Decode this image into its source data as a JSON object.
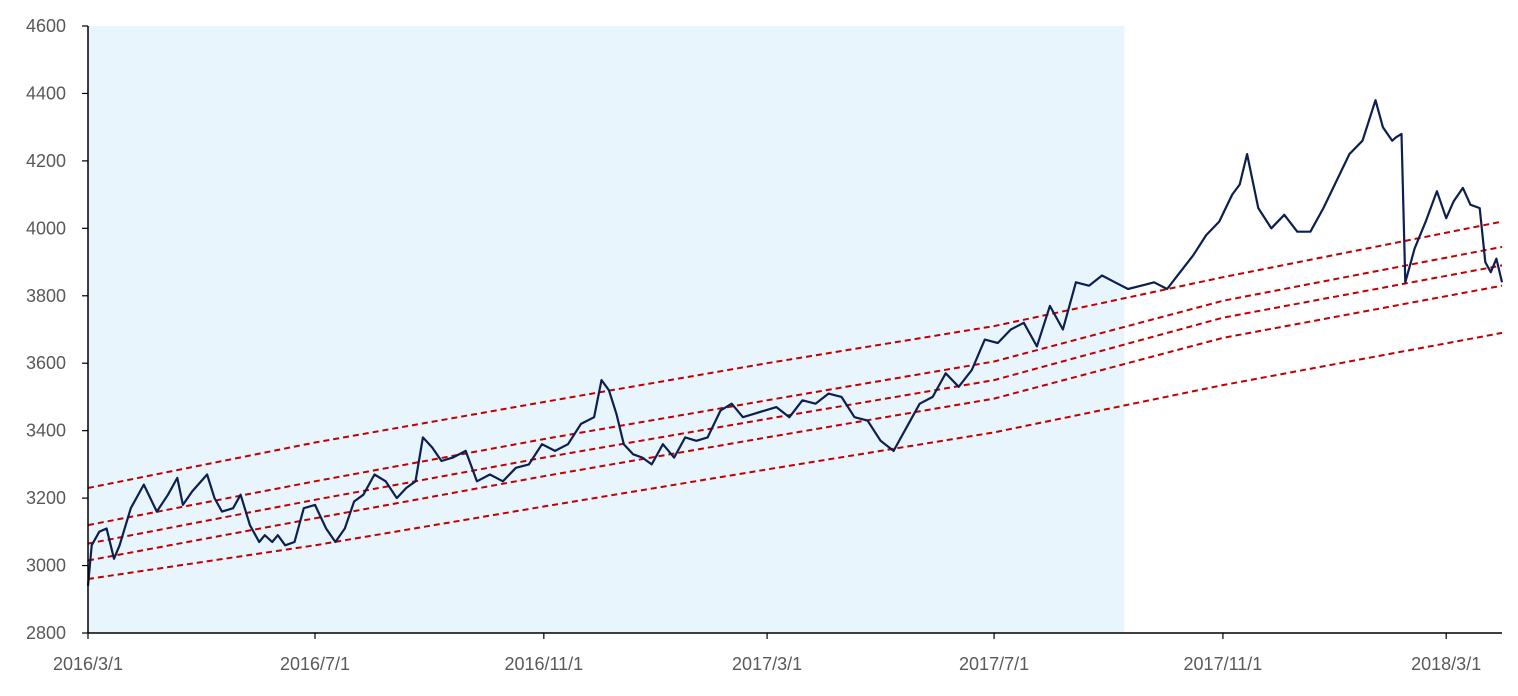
{
  "chart_data": {
    "type": "line",
    "title": "",
    "xlabel": "",
    "ylabel": "",
    "ylim": [
      2800,
      4600
    ],
    "xlim": [
      "2016-03-01",
      "2018-03-31"
    ],
    "y_ticks": [
      2800,
      3000,
      3200,
      3400,
      3600,
      3800,
      4000,
      4200,
      4400,
      4600
    ],
    "x_ticks": [
      {
        "date": "2016-03-01",
        "label": "2016/3/1"
      },
      {
        "date": "2016-07-01",
        "label": "2016/7/1"
      },
      {
        "date": "2016-11-01",
        "label": "2016/11/1"
      },
      {
        "date": "2017-03-01",
        "label": "2017/3/1"
      },
      {
        "date": "2017-07-01",
        "label": "2017/7/1"
      },
      {
        "date": "2017-11-01",
        "label": "2017/11/1"
      },
      {
        "date": "2018-03-01",
        "label": "2018/3/1"
      }
    ],
    "grid": false,
    "legend": "none",
    "shaded_region": {
      "start": "2016-03-01",
      "end": "2017-09-09",
      "color": "#e8f5fc"
    },
    "colors": {
      "price": "#0d1f4f",
      "bands": "#c00000"
    },
    "series": [
      {
        "style": "solid",
        "x": [
          "2016-03-01",
          "2016-03-03",
          "2016-03-07",
          "2016-03-11",
          "2016-03-15",
          "2016-03-18",
          "2016-03-24",
          "2016-03-31",
          "2016-04-07",
          "2016-04-13",
          "2016-04-18",
          "2016-04-21",
          "2016-04-26",
          "2016-05-04",
          "2016-05-08",
          "2016-05-12",
          "2016-05-18",
          "2016-05-22",
          "2016-05-27",
          "2016-06-01",
          "2016-06-04",
          "2016-06-08",
          "2016-06-11",
          "2016-06-15",
          "2016-06-20",
          "2016-06-25",
          "2016-07-01",
          "2016-07-07",
          "2016-07-12",
          "2016-07-17",
          "2016-07-22",
          "2016-07-27",
          "2016-08-02",
          "2016-08-08",
          "2016-08-14",
          "2016-08-19",
          "2016-08-24",
          "2016-08-28",
          "2016-09-02",
          "2016-09-07",
          "2016-09-13",
          "2016-09-20",
          "2016-09-26",
          "2016-10-03",
          "2016-10-10",
          "2016-10-17",
          "2016-10-24",
          "2016-10-31",
          "2016-11-07",
          "2016-11-14",
          "2016-11-21",
          "2016-11-28",
          "2016-12-02",
          "2016-12-06",
          "2016-12-10",
          "2016-12-14",
          "2016-12-19",
          "2016-12-24",
          "2016-12-29",
          "2017-01-04",
          "2017-01-10",
          "2017-01-16",
          "2017-01-22",
          "2017-01-28",
          "2017-02-04",
          "2017-02-10",
          "2017-02-16",
          "2017-02-22",
          "2017-02-28",
          "2017-03-06",
          "2017-03-13",
          "2017-03-20",
          "2017-03-27",
          "2017-04-03",
          "2017-04-10",
          "2017-04-17",
          "2017-04-24",
          "2017-05-01",
          "2017-05-08",
          "2017-05-15",
          "2017-05-22",
          "2017-05-29",
          "2017-06-05",
          "2017-06-12",
          "2017-06-19",
          "2017-06-26",
          "2017-07-03",
          "2017-07-10",
          "2017-07-17",
          "2017-07-24",
          "2017-07-31",
          "2017-08-07",
          "2017-08-14",
          "2017-08-21",
          "2017-08-28",
          "2017-09-04",
          "2017-09-11",
          "2017-09-18",
          "2017-09-25",
          "2017-10-02",
          "2017-10-09",
          "2017-10-16",
          "2017-10-23",
          "2017-10-30",
          "2017-11-06",
          "2017-11-10",
          "2017-11-14",
          "2017-11-20",
          "2017-11-27",
          "2017-12-04",
          "2017-12-11",
          "2017-12-18",
          "2017-12-25",
          "2018-01-01",
          "2018-01-08",
          "2018-01-15",
          "2018-01-22",
          "2018-01-26",
          "2018-01-31",
          "2018-02-02",
          "2018-02-05",
          "2018-02-07",
          "2018-02-12",
          "2018-02-18",
          "2018-02-24",
          "2018-03-01",
          "2018-03-05",
          "2018-03-10",
          "2018-03-14",
          "2018-03-19",
          "2018-03-22",
          "2018-03-25",
          "2018-03-28",
          "2018-03-31"
        ],
        "values": [
          2940,
          3060,
          3100,
          3110,
          3020,
          3060,
          3170,
          3240,
          3160,
          3210,
          3260,
          3180,
          3220,
          3270,
          3200,
          3160,
          3170,
          3210,
          3120,
          3070,
          3090,
          3070,
          3090,
          3060,
          3070,
          3170,
          3180,
          3110,
          3070,
          3110,
          3190,
          3210,
          3270,
          3250,
          3200,
          3230,
          3250,
          3380,
          3350,
          3310,
          3320,
          3340,
          3250,
          3270,
          3250,
          3290,
          3300,
          3360,
          3340,
          3360,
          3420,
          3440,
          3550,
          3520,
          3450,
          3360,
          3330,
          3320,
          3300,
          3360,
          3320,
          3380,
          3370,
          3380,
          3460,
          3480,
          3440,
          3450,
          3460,
          3470,
          3440,
          3490,
          3480,
          3510,
          3500,
          3440,
          3430,
          3370,
          3340,
          3410,
          3480,
          3500,
          3570,
          3530,
          3580,
          3670,
          3660,
          3700,
          3720,
          3650,
          3770,
          3700,
          3840,
          3830,
          3860,
          3840,
          3820,
          3830,
          3840,
          3820,
          3870,
          3920,
          3980,
          4020,
          4100,
          4130,
          4220,
          4060,
          4000,
          4040,
          3990,
          3990,
          4060,
          4140,
          4220,
          4260,
          4380,
          4300,
          4260,
          4270,
          4280,
          3840,
          3940,
          4020,
          4110,
          4030,
          4080,
          4120,
          4070,
          4060,
          3900,
          3870,
          3910,
          3840
        ]
      },
      {
        "style": "dashed",
        "x": [
          "2016-03-01",
          "2016-07-01",
          "2016-11-01",
          "2017-03-01",
          "2017-07-01",
          "2017-11-01",
          "2018-03-31"
        ],
        "values": [
          3230,
          3365,
          3485,
          3600,
          3710,
          3855,
          4020
        ]
      },
      {
        "style": "dashed",
        "x": [
          "2016-03-01",
          "2016-07-01",
          "2016-11-01",
          "2017-03-01",
          "2017-07-01",
          "2017-11-01",
          "2018-03-31"
        ],
        "values": [
          3120,
          3250,
          3375,
          3490,
          3605,
          3785,
          3945
        ]
      },
      {
        "style": "dashed",
        "x": [
          "2016-03-01",
          "2016-07-01",
          "2016-11-01",
          "2017-03-01",
          "2017-07-01",
          "2017-11-01",
          "2018-03-31"
        ],
        "values": [
          3065,
          3195,
          3320,
          3435,
          3550,
          3735,
          3890
        ]
      },
      {
        "style": "dashed",
        "x": [
          "2016-03-01",
          "2016-07-01",
          "2016-11-01",
          "2017-03-01",
          "2017-07-01",
          "2017-11-01",
          "2018-03-31"
        ],
        "values": [
          3015,
          3140,
          3265,
          3380,
          3495,
          3675,
          3830
        ]
      },
      {
        "style": "dashed",
        "x": [
          "2016-03-01",
          "2016-07-01",
          "2016-11-01",
          "2017-03-01",
          "2017-07-01",
          "2017-11-01",
          "2018-03-31"
        ],
        "values": [
          2960,
          3060,
          3175,
          3285,
          3395,
          3535,
          3690
        ]
      }
    ]
  }
}
